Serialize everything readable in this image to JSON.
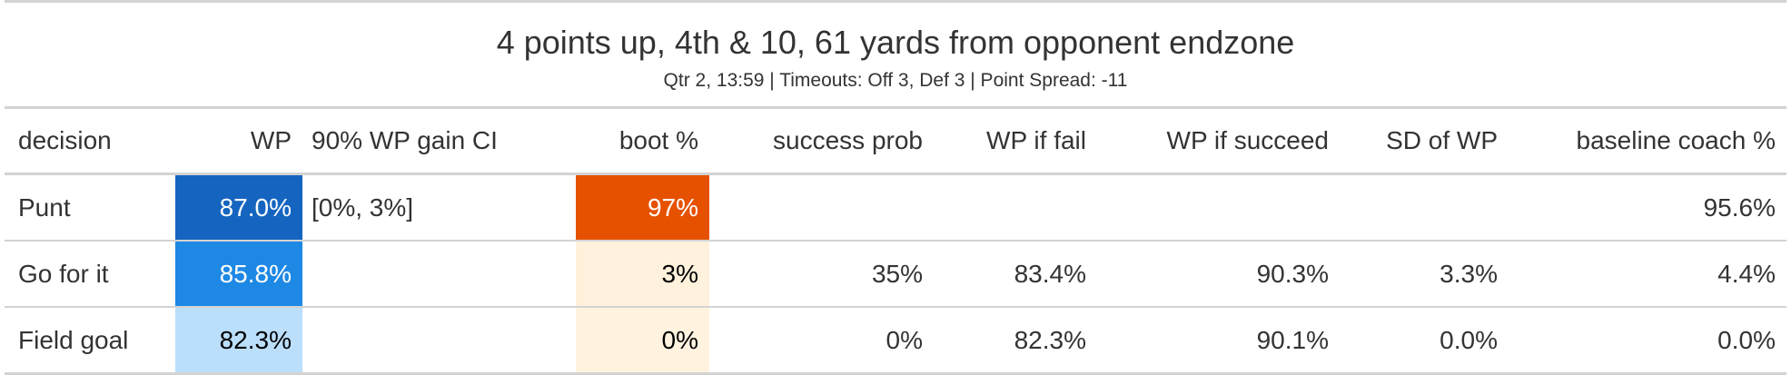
{
  "title": "4 points up, 4th & 10, 61 yards from opponent endzone",
  "subtitle": "Qtr 2, 13:59 | Timeouts: Off 3, Def 3 | Point Spread: -11",
  "columns": [
    "decision",
    "WP",
    "90% WP gain CI",
    "boot %",
    "success prob",
    "WP if fail",
    "WP if succeed",
    "SD of WP",
    "baseline coach %"
  ],
  "rows": [
    {
      "decision": "Punt",
      "wp": "87.0%",
      "ci": "[0%, 3%]",
      "boot": "97%",
      "success_prob": "",
      "wp_fail": "",
      "wp_succeed": "",
      "sd": "",
      "baseline": "95.6%",
      "wp_color": "#1565c0",
      "wp_text_color": "#ffffff",
      "boot_color": "#e65100",
      "boot_text_color": "#ffffff"
    },
    {
      "decision": "Go for it",
      "wp": "85.8%",
      "ci": "",
      "boot": "3%",
      "success_prob": "35%",
      "wp_fail": "83.4%",
      "wp_succeed": "90.3%",
      "sd": "3.3%",
      "baseline": "4.4%",
      "wp_color": "#1e88e5",
      "wp_text_color": "#ffffff",
      "boot_color": "#fff1dc",
      "boot_text_color": "#000000"
    },
    {
      "decision": "Field goal",
      "wp": "82.3%",
      "ci": "",
      "boot": "0%",
      "success_prob": "0%",
      "wp_fail": "82.3%",
      "wp_succeed": "90.1%",
      "sd": "0.0%",
      "baseline": "0.0%",
      "wp_color": "#bbdefb",
      "wp_text_color": "#000000",
      "boot_color": "#fff3e0",
      "boot_text_color": "#000000"
    }
  ],
  "chart_data": {
    "type": "table",
    "title": "4 points up, 4th & 10, 61 yards from opponent endzone",
    "subtitle": "Qtr 2, 13:59 | Timeouts: Off 3, Def 3 | Point Spread: -11",
    "columns": [
      "decision",
      "WP",
      "90% WP gain CI",
      "boot %",
      "success prob",
      "WP if fail",
      "WP if succeed",
      "SD of WP",
      "baseline coach %"
    ],
    "rows": [
      [
        "Punt",
        87.0,
        "[0%, 3%]",
        97,
        null,
        null,
        null,
        null,
        95.6
      ],
      [
        "Go for it",
        85.8,
        null,
        3,
        35,
        83.4,
        90.3,
        3.3,
        4.4
      ],
      [
        "Field goal",
        82.3,
        null,
        0,
        0,
        82.3,
        90.1,
        0.0,
        0.0
      ]
    ]
  }
}
